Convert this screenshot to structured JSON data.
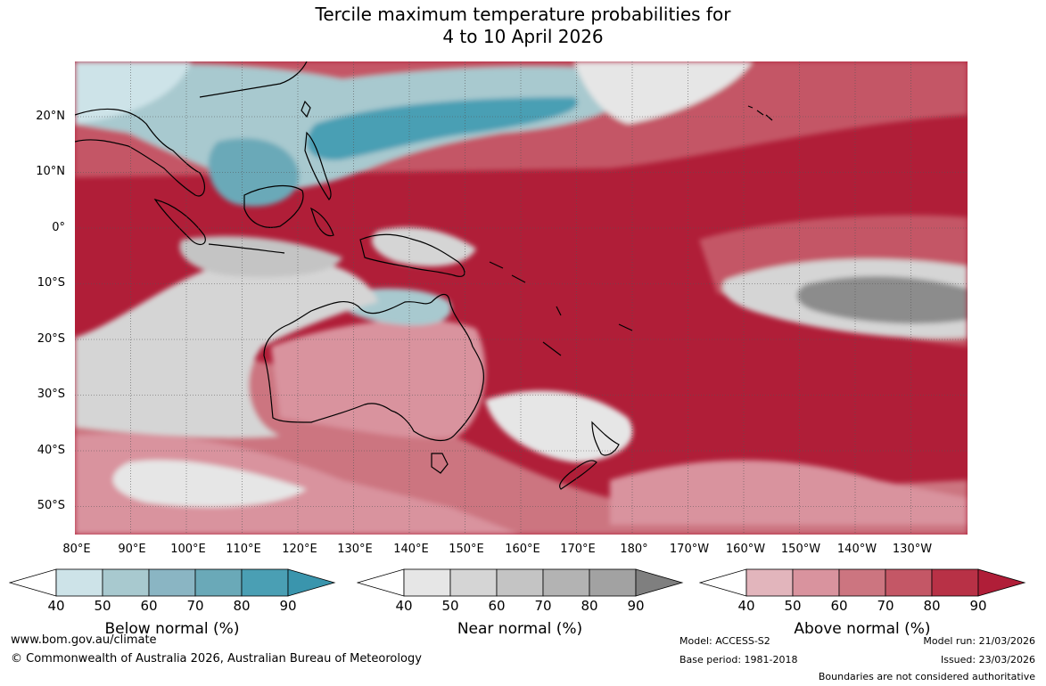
{
  "title_line1": "Tercile maximum temperature probabilities for",
  "title_line2": "4 to 10 April 2026",
  "lat_labels": [
    "20°N",
    "10°N",
    "0°",
    "10°S",
    "20°S",
    "30°S",
    "40°S",
    "50°S"
  ],
  "lon_labels": [
    "80°E",
    "90°E",
    "100°E",
    "110°E",
    "120°E",
    "130°E",
    "140°E",
    "150°E",
    "160°E",
    "170°E",
    "180°",
    "170°W",
    "160°W",
    "150°W",
    "140°W",
    "130°W"
  ],
  "colorbars": [
    {
      "label": "Below normal (%)",
      "ticks": [
        "40",
        "50",
        "60",
        "70",
        "80",
        "90"
      ],
      "colors": [
        "#ffffff",
        "#cde3e8",
        "#a8c9cf",
        "#8ab5c3",
        "#6aa9b8",
        "#4a9fb4",
        "#3a95ad"
      ]
    },
    {
      "label": "Near normal (%)",
      "ticks": [
        "40",
        "50",
        "60",
        "70",
        "80",
        "90"
      ],
      "colors": [
        "#ffffff",
        "#e6e6e6",
        "#d5d5d5",
        "#c4c4c4",
        "#b3b3b3",
        "#a2a2a2",
        "#7f7f7f"
      ]
    },
    {
      "label": "Above normal (%)",
      "ticks": [
        "40",
        "50",
        "60",
        "70",
        "80",
        "90"
      ],
      "colors": [
        "#ffffff",
        "#e2b5bc",
        "#d9939e",
        "#cc7580",
        "#c45766",
        "#b83146",
        "#b01e38"
      ]
    }
  ],
  "footer": {
    "url": "www.bom.gov.au/climate",
    "copyright": "© Commonwealth of Australia 2026, Australian Bureau of Meteorology",
    "model": "Model: ACCESS-S2",
    "base_period": "Base period: 1981-2018",
    "model_run": "Model run: 21/03/2026",
    "issued": "Issued: 23/03/2026",
    "disclaimer": "Boundaries are not considered authoritative"
  },
  "colors": {
    "above_dark": "#b01e38",
    "above_mid": "#c45766",
    "above_light": "#e2b5bc",
    "below": "#4a9fb4",
    "below_light": "#a8c9cf",
    "near": "#d5d5d5",
    "near_dark": "#8c8c8c"
  }
}
